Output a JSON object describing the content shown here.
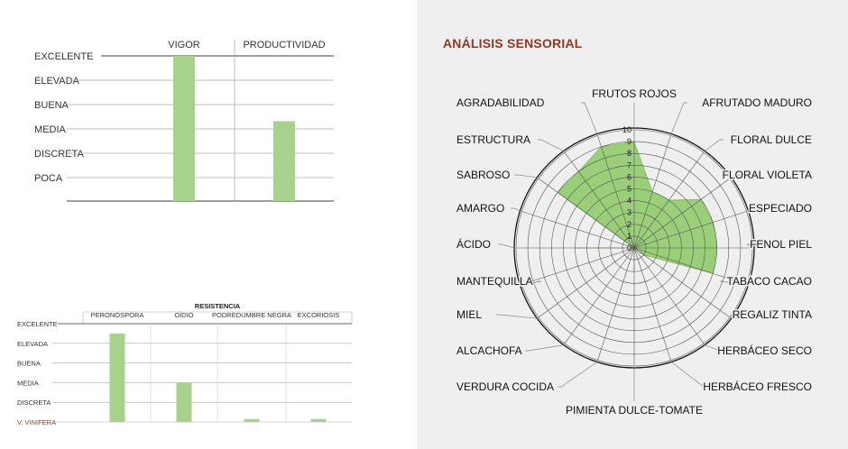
{
  "colors": {
    "bar": "#a9d18e",
    "axis": "#666666",
    "grid": "#aaaaaa",
    "accent": "#8b3a26",
    "radar_fill": "#8cc864",
    "panel_bg": "#efefef"
  },
  "chart_data": [
    {
      "type": "bar",
      "categories": [
        "VIGOR",
        "PRODUCTIVIDAD"
      ],
      "levels": [
        "EXCELENTE",
        "ELEVADA",
        "BUENA",
        "MEDIA",
        "DISCRETA",
        "POCA"
      ],
      "values": [
        6,
        3.3
      ],
      "ylim": [
        0,
        6
      ]
    },
    {
      "type": "bar",
      "title": "RESISTENCIA",
      "categories": [
        "PERONOSPORA",
        "OÍDIO",
        "PODREDUMBRE NEGRA",
        "EXCORIOSIS"
      ],
      "levels": [
        "EXCELENTE",
        "ELEVADA",
        "BUENA",
        "MEDIA",
        "DISCRETA",
        "V. VINIFERA"
      ],
      "values": [
        4.5,
        2,
        0.15,
        0.15
      ],
      "ylim": [
        0,
        5
      ]
    },
    {
      "type": "radar",
      "title": "ANÁLISIS SENSORIAL",
      "rmax": 10,
      "ticks": [
        "0",
        "1",
        "2",
        "3",
        "4",
        "5",
        "6",
        "7",
        "8",
        "9",
        "10"
      ],
      "axes": [
        "FRUTOS ROJOS",
        "AFRUTADO MADURO",
        "FLORAL DULCE",
        "FLORAL VIOLETA",
        "ESPECIADO",
        "FENOL PIEL",
        "TABACO CACAO",
        "REGALIZ TINTA",
        "HERBÁCEO SECO",
        "HERBÁCEO FRESCO",
        "PIMIENTA DULCE-TOMATE",
        "VERDURA COCIDA",
        "ALCACHOFA",
        "MIEL",
        "MANTEQUILLA",
        "ÁCIDO",
        "AMARGO",
        "SABROSO",
        "ESTRUCTURA",
        "AGRADABILIDAD"
      ],
      "values": [
        9,
        5,
        5,
        7,
        7,
        7,
        7,
        1,
        0,
        0,
        2,
        0,
        0,
        0,
        0,
        5,
        0,
        8,
        8,
        9
      ]
    }
  ]
}
